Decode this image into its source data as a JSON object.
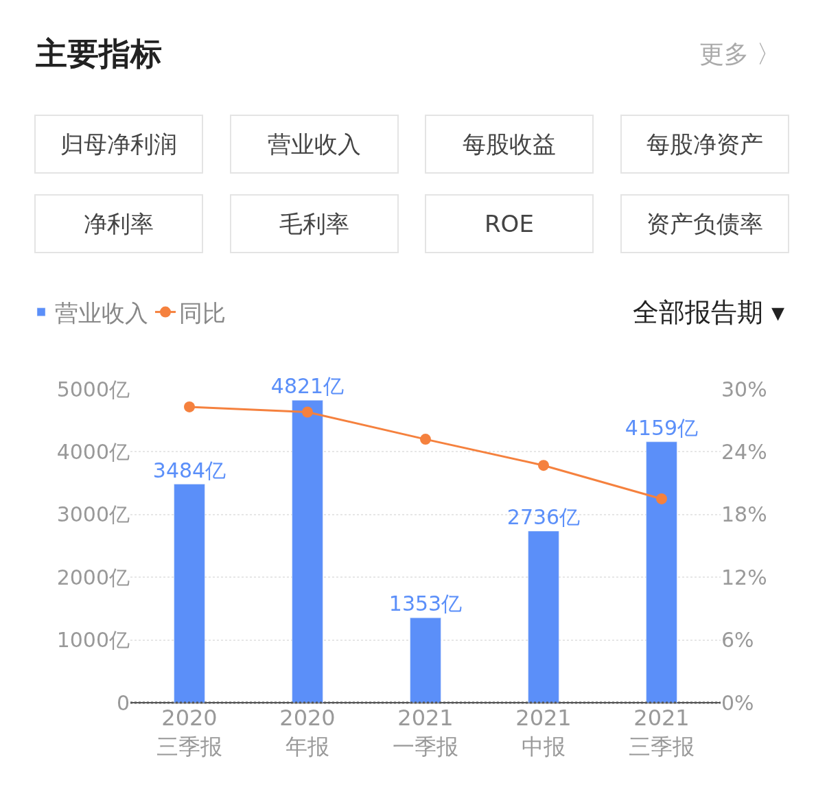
{
  "chart_data": {
    "type": "bar",
    "title": "主要指标",
    "annotations": [
      "归母净利润",
      "营业收入",
      "每股收益",
      "每股净资产",
      "净利率",
      "毛利率",
      "ROE",
      "资产负债率",
      "更多 〉",
      "全部报告期 ▾"
    ],
    "categories": [
      "2020\n三季报",
      "2020\n年报",
      "2021\n一季报",
      "2021\n中报",
      "2021\n三季报"
    ],
    "series": [
      {
        "name": "营业收入",
        "color": "#5b8ff9",
        "values": [
          3484,
          4821,
          1353,
          2736,
          4159
        ],
        "value_labels": [
          "3484亿",
          "4821亿",
          "1353亿",
          "2736亿",
          "4159亿"
        ]
      },
      {
        "name": "同比",
        "type": "line",
        "axis": "y2",
        "color": "#f5813e",
        "values": [
          28.3,
          27.8,
          25.2,
          22.7,
          19.5
        ]
      }
    ],
    "ylim": [
      0,
      5000
    ],
    "yticks": [
      {
        "value": 0,
        "label": "0"
      },
      {
        "value": 1000,
        "label": "1000亿"
      },
      {
        "value": 2000,
        "label": "2000亿"
      },
      {
        "value": 3000,
        "label": "3000亿"
      },
      {
        "value": 4000,
        "label": "4000亿"
      },
      {
        "value": 5000,
        "label": "5000亿"
      }
    ],
    "y2lim": [
      0,
      30
    ],
    "y2ticks": [
      {
        "value": 0,
        "label": "0%"
      },
      {
        "value": 6,
        "label": "6%"
      },
      {
        "value": 12,
        "label": "12%"
      },
      {
        "value": 18,
        "label": "18%"
      },
      {
        "value": 24,
        "label": "24%"
      },
      {
        "value": 30,
        "label": "30%"
      }
    ],
    "grid": "y",
    "legend": "top left",
    "marker": "circle"
  }
}
